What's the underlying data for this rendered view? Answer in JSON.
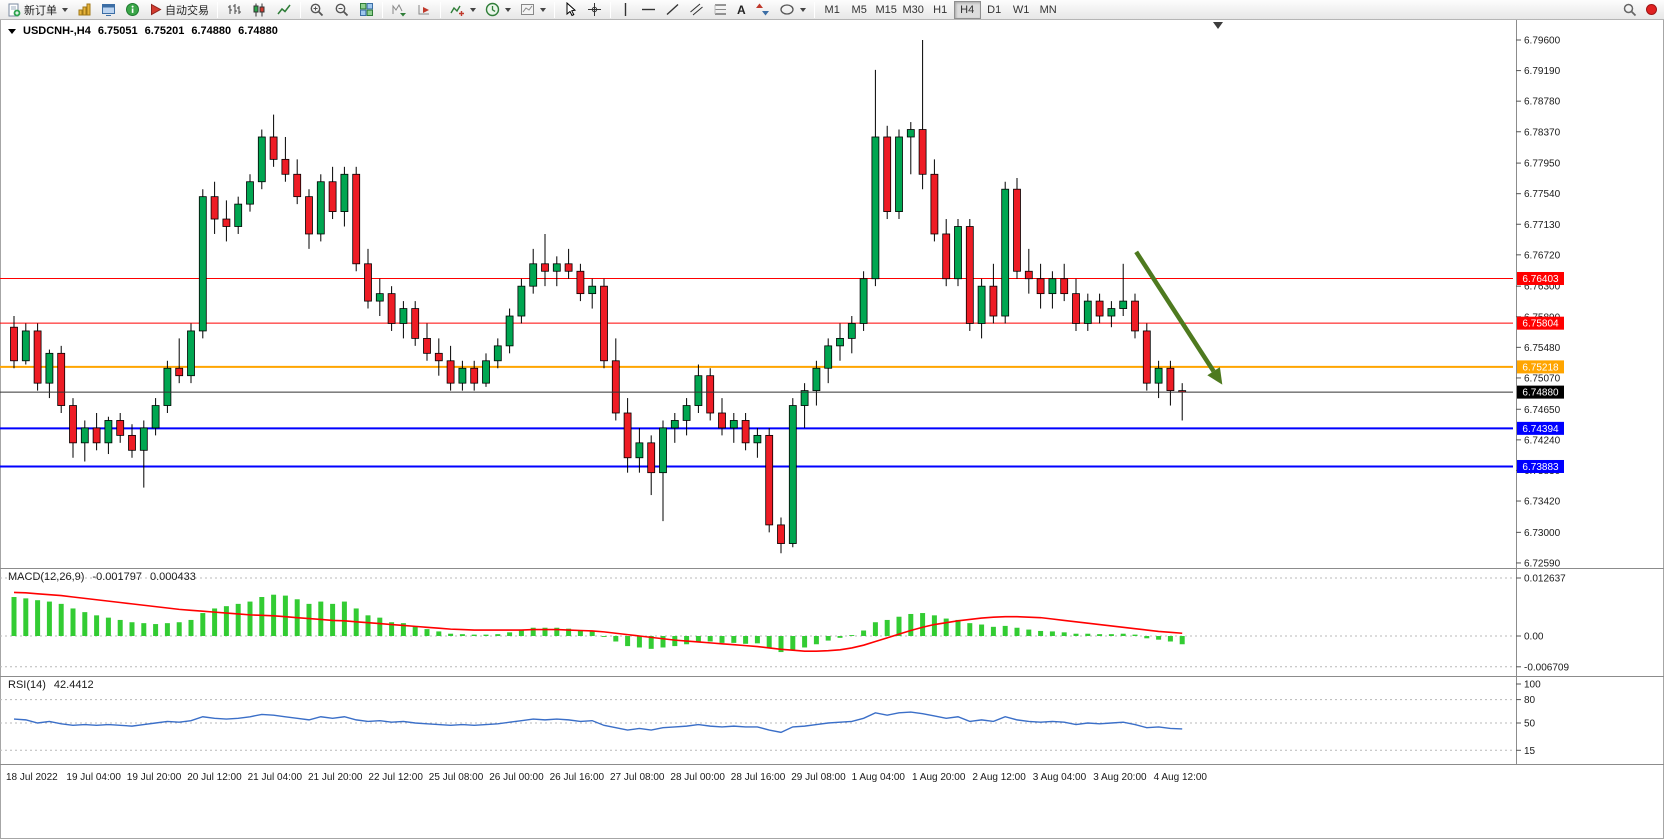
{
  "colors": {
    "bull": "#00a651",
    "bear": "#ee1c25",
    "wick": "#000000",
    "macd_histogram": "#33cc33",
    "macd_signal": "#ff0000",
    "rsi_line": "#3b6fc8"
  },
  "toolbar": {
    "new_order_label": "新订单",
    "auto_trading_label": "自动交易",
    "text_tool_label": "A",
    "timeframes": [
      "M1",
      "M5",
      "M15",
      "M30",
      "H1",
      "H4",
      "D1",
      "W1",
      "MN"
    ],
    "active_timeframe": "H4"
  },
  "chart": {
    "symbol_header": "USDCNH-,H4",
    "open": "6.75051",
    "high": "6.75201",
    "low": "6.74880",
    "close": "6.74880"
  },
  "chart_data": {
    "type": "candlestick",
    "symbol": "USDCNH-",
    "timeframe": "H4",
    "y_ticks": [
      "6.79600",
      "6.79190",
      "6.78780",
      "6.78370",
      "6.77950",
      "6.77540",
      "6.77130",
      "6.76720",
      "6.76300",
      "6.75890",
      "6.75480",
      "6.75070",
      "6.74650",
      "6.74240",
      "6.73830",
      "6.73420",
      "6.73000",
      "6.72590"
    ],
    "x_labels": [
      "18 Jul 2022",
      "19 Jul 04:00",
      "19 Jul 20:00",
      "20 Jul 12:00",
      "21 Jul 04:00",
      "21 Jul 20:00",
      "22 Jul 12:00",
      "25 Jul 08:00",
      "26 Jul 00:00",
      "26 Jul 16:00",
      "27 Jul 08:00",
      "28 Jul 00:00",
      "28 Jul 16:00",
      "29 Jul 08:00",
      "1 Aug 04:00",
      "1 Aug 20:00",
      "2 Aug 12:00",
      "3 Aug 04:00",
      "3 Aug 20:00",
      "4 Aug 12:00"
    ],
    "levels": [
      {
        "price": 6.76403,
        "label": "6.76403",
        "color": "#ff0000",
        "line_width": 1
      },
      {
        "price": 6.75804,
        "label": "6.75804",
        "color": "#ff0000",
        "line_width": 1
      },
      {
        "price": 6.75218,
        "label": "6.75218",
        "color": "#ffa500",
        "line_width": 2
      },
      {
        "price": 6.74394,
        "label": "6.74394",
        "color": "#0000ff",
        "line_width": 2
      },
      {
        "price": 6.73883,
        "label": "6.73883",
        "color": "#0000ff",
        "line_width": 2
      }
    ],
    "current_price": {
      "price": 6.7488,
      "label": "6.74880",
      "line_color": "#333333",
      "label_bg": "#000000"
    },
    "arrow": {
      "from_index": 95.1,
      "from_price": 6.7676,
      "to_index": 102.4,
      "to_price": 6.7498,
      "color": "#4e7a1f"
    },
    "candles": [
      [
        6.7575,
        6.759,
        6.752,
        6.753
      ],
      [
        6.753,
        6.758,
        6.7525,
        6.757
      ],
      [
        6.757,
        6.758,
        6.749,
        6.75
      ],
      [
        6.75,
        6.7545,
        6.748,
        6.754
      ],
      [
        6.754,
        6.755,
        6.746,
        6.747
      ],
      [
        6.747,
        6.748,
        6.74,
        6.742
      ],
      [
        6.742,
        6.745,
        6.7395,
        6.744
      ],
      [
        6.744,
        6.746,
        6.741,
        6.742
      ],
      [
        6.742,
        6.7455,
        6.7405,
        6.745
      ],
      [
        6.745,
        6.746,
        6.742,
        6.743
      ],
      [
        6.743,
        6.7445,
        6.74,
        6.741
      ],
      [
        6.741,
        6.745,
        6.736,
        6.744
      ],
      [
        6.744,
        6.748,
        6.743,
        6.747
      ],
      [
        6.747,
        6.753,
        6.746,
        6.752
      ],
      [
        6.752,
        6.756,
        6.75,
        6.751
      ],
      [
        6.751,
        6.758,
        6.75,
        6.757
      ],
      [
        6.757,
        6.776,
        6.756,
        6.775
      ],
      [
        6.775,
        6.777,
        6.77,
        6.772
      ],
      [
        6.772,
        6.7745,
        6.769,
        6.771
      ],
      [
        6.771,
        6.775,
        6.77,
        6.774
      ],
      [
        6.774,
        6.778,
        6.773,
        6.777
      ],
      [
        6.777,
        6.784,
        6.776,
        6.783
      ],
      [
        6.783,
        6.786,
        6.779,
        6.78
      ],
      [
        6.78,
        6.783,
        6.777,
        6.778
      ],
      [
        6.778,
        6.78,
        6.774,
        6.775
      ],
      [
        6.775,
        6.776,
        6.768,
        6.77
      ],
      [
        6.77,
        6.778,
        6.769,
        6.777
      ],
      [
        6.777,
        6.779,
        6.772,
        6.773
      ],
      [
        6.773,
        6.779,
        6.771,
        6.778
      ],
      [
        6.778,
        6.779,
        6.765,
        6.766
      ],
      [
        6.766,
        6.768,
        6.76,
        6.761
      ],
      [
        6.761,
        6.764,
        6.759,
        6.762
      ],
      [
        6.762,
        6.763,
        6.757,
        6.758
      ],
      [
        6.758,
        6.761,
        6.756,
        6.76
      ],
      [
        6.76,
        6.761,
        6.755,
        6.756
      ],
      [
        6.756,
        6.758,
        6.753,
        6.754
      ],
      [
        6.754,
        6.756,
        6.751,
        6.753
      ],
      [
        6.753,
        6.755,
        6.749,
        6.75
      ],
      [
        6.75,
        6.753,
        6.749,
        6.752
      ],
      [
        6.752,
        6.753,
        6.749,
        6.75
      ],
      [
        6.75,
        6.754,
        6.7495,
        6.753
      ],
      [
        6.753,
        6.756,
        6.752,
        6.755
      ],
      [
        6.755,
        6.76,
        6.754,
        6.759
      ],
      [
        6.759,
        6.764,
        6.758,
        6.763
      ],
      [
        6.763,
        6.768,
        6.762,
        6.766
      ],
      [
        6.766,
        6.77,
        6.763,
        6.765
      ],
      [
        6.765,
        6.767,
        6.763,
        6.766
      ],
      [
        6.766,
        6.768,
        6.764,
        6.765
      ],
      [
        6.765,
        6.766,
        6.761,
        6.762
      ],
      [
        6.762,
        6.764,
        6.76,
        6.763
      ],
      [
        6.763,
        6.764,
        6.752,
        6.753
      ],
      [
        6.753,
        6.756,
        6.745,
        6.746
      ],
      [
        6.746,
        6.748,
        6.738,
        6.74
      ],
      [
        6.74,
        6.744,
        6.738,
        6.742
      ],
      [
        6.742,
        6.743,
        6.735,
        6.738
      ],
      [
        6.738,
        6.745,
        6.7315,
        6.744
      ],
      [
        6.744,
        6.746,
        6.742,
        6.745
      ],
      [
        6.745,
        6.748,
        6.743,
        6.747
      ],
      [
        6.747,
        6.7525,
        6.746,
        6.751
      ],
      [
        6.751,
        6.752,
        6.745,
        6.746
      ],
      [
        6.746,
        6.748,
        6.743,
        6.744
      ],
      [
        6.744,
        6.746,
        6.742,
        6.745
      ],
      [
        6.745,
        6.746,
        6.741,
        6.742
      ],
      [
        6.742,
        6.744,
        6.74,
        6.743
      ],
      [
        6.743,
        6.744,
        6.73,
        6.731
      ],
      [
        6.731,
        6.732,
        6.7272,
        6.7285
      ],
      [
        6.7285,
        6.748,
        6.728,
        6.747
      ],
      [
        6.747,
        6.75,
        6.744,
        6.749
      ],
      [
        6.749,
        6.753,
        6.747,
        6.752
      ],
      [
        6.752,
        6.756,
        6.75,
        6.755
      ],
      [
        6.755,
        6.758,
        6.753,
        6.756
      ],
      [
        6.756,
        6.759,
        6.754,
        6.758
      ],
      [
        6.758,
        6.765,
        6.757,
        6.764
      ],
      [
        6.764,
        6.792,
        6.763,
        6.783
      ],
      [
        6.783,
        6.7845,
        6.772,
        6.773
      ],
      [
        6.773,
        6.784,
        6.772,
        6.783
      ],
      [
        6.783,
        6.785,
        6.778,
        6.784
      ],
      [
        6.784,
        6.796,
        6.776,
        6.778
      ],
      [
        6.778,
        6.78,
        6.769,
        6.77
      ],
      [
        6.77,
        6.772,
        6.763,
        6.764
      ],
      [
        6.764,
        6.772,
        6.763,
        6.771
      ],
      [
        6.771,
        6.772,
        6.757,
        6.758
      ],
      [
        6.758,
        6.764,
        6.756,
        6.763
      ],
      [
        6.763,
        6.766,
        6.758,
        6.759
      ],
      [
        6.759,
        6.777,
        6.758,
        6.776
      ],
      [
        6.776,
        6.7775,
        6.764,
        6.765
      ],
      [
        6.765,
        6.768,
        6.762,
        6.764
      ],
      [
        6.764,
        6.766,
        6.76,
        6.762
      ],
      [
        6.762,
        6.765,
        6.76,
        6.764
      ],
      [
        6.764,
        6.766,
        6.761,
        6.762
      ],
      [
        6.762,
        6.764,
        6.757,
        6.758
      ],
      [
        6.758,
        6.762,
        6.757,
        6.761
      ],
      [
        6.761,
        6.762,
        6.758,
        6.759
      ],
      [
        6.759,
        6.761,
        6.7575,
        6.76
      ],
      [
        6.76,
        6.766,
        6.759,
        6.761
      ],
      [
        6.761,
        6.762,
        6.756,
        6.757
      ],
      [
        6.757,
        6.758,
        6.749,
        6.75
      ],
      [
        6.75,
        6.753,
        6.748,
        6.752
      ],
      [
        6.752,
        6.753,
        6.747,
        6.749
      ],
      [
        6.749,
        6.75,
        6.745,
        6.7488
      ]
    ],
    "macd": {
      "type": "bar+line",
      "label": "MACD(12,26,9)",
      "value_main": "-0.001797",
      "value_signal": "0.000433",
      "scale": [
        "0.012637",
        "0.00",
        "-0.006709"
      ],
      "histogram": [
        0.0085,
        0.0082,
        0.0078,
        0.0075,
        0.007,
        0.006,
        0.0052,
        0.0045,
        0.004,
        0.0035,
        0.003,
        0.0028,
        0.0026,
        0.0028,
        0.003,
        0.0035,
        0.005,
        0.006,
        0.0065,
        0.007,
        0.0075,
        0.0085,
        0.009,
        0.0088,
        0.008,
        0.007,
        0.0075,
        0.007,
        0.0075,
        0.006,
        0.0045,
        0.004,
        0.003,
        0.0028,
        0.002,
        0.0015,
        0.001,
        0.0005,
        0.0004,
        0.0003,
        0.0003,
        0.0004,
        0.0008,
        0.0012,
        0.0018,
        0.0018,
        0.0018,
        0.0016,
        0.0012,
        0.001,
        -0.0002,
        -0.0012,
        -0.0022,
        -0.0025,
        -0.0028,
        -0.0025,
        -0.0022,
        -0.0018,
        -0.0012,
        -0.0012,
        -0.0015,
        -0.0015,
        -0.0017,
        -0.0016,
        -0.0025,
        -0.0035,
        -0.003,
        -0.0025,
        -0.0018,
        -0.001,
        -0.0004,
        0.0002,
        0.0012,
        0.003,
        0.0035,
        0.0042,
        0.0048,
        0.005,
        0.0045,
        0.0038,
        0.0035,
        0.0028,
        0.0025,
        0.002,
        0.0022,
        0.0018,
        0.0014,
        0.0011,
        0.001,
        0.0008,
        0.0005,
        0.0005,
        0.0004,
        0.0004,
        0.0005,
        0.0003,
        -0.0005,
        -0.0008,
        -0.0012,
        -0.0018
      ],
      "signal": [
        0.0095,
        0.0094,
        0.0092,
        0.009,
        0.0088,
        0.0085,
        0.0082,
        0.0079,
        0.0076,
        0.0073,
        0.007,
        0.0067,
        0.0064,
        0.0061,
        0.0058,
        0.0056,
        0.0054,
        0.0052,
        0.005,
        0.0048,
        0.0046,
        0.0045,
        0.0044,
        0.0042,
        0.004,
        0.0038,
        0.0036,
        0.0034,
        0.0033,
        0.0031,
        0.0029,
        0.0027,
        0.0025,
        0.0023,
        0.0021,
        0.0019,
        0.0017,
        0.0015,
        0.0014,
        0.0013,
        0.0013,
        0.0013,
        0.0013,
        0.0013,
        0.0014,
        0.0014,
        0.0014,
        0.0013,
        0.0012,
        0.0011,
        0.0009,
        0.0006,
        0.0003,
        0.0,
        -0.0003,
        -0.0006,
        -0.0009,
        -0.0011,
        -0.0013,
        -0.0015,
        -0.0017,
        -0.0019,
        -0.0021,
        -0.0023,
        -0.0026,
        -0.0029,
        -0.0031,
        -0.0033,
        -0.0033,
        -0.0032,
        -0.003,
        -0.0026,
        -0.002,
        -0.0012,
        -0.0004,
        0.0004,
        0.0012,
        0.0019,
        0.0025,
        0.0029,
        0.0033,
        0.0036,
        0.0039,
        0.0041,
        0.0042,
        0.0042,
        0.0041,
        0.004,
        0.0037,
        0.0034,
        0.0031,
        0.0028,
        0.0025,
        0.0022,
        0.0019,
        0.0016,
        0.0013,
        0.001,
        0.0008,
        0.0006
      ]
    },
    "rsi": {
      "type": "line",
      "label": "RSI(14)",
      "value": "42.4412",
      "levels": [
        "100",
        "80",
        "50",
        "15"
      ],
      "line": [
        55,
        54,
        50,
        52,
        49,
        47,
        48,
        47,
        48,
        47,
        46,
        48,
        50,
        52,
        51,
        53,
        58,
        56,
        55,
        56,
        58,
        61,
        60,
        58,
        56,
        54,
        58,
        56,
        58,
        54,
        52,
        53,
        51,
        52,
        50,
        49,
        48,
        47,
        48,
        47,
        48,
        49,
        51,
        53,
        55,
        54,
        55,
        54,
        52,
        53,
        47,
        44,
        41,
        43,
        41,
        44,
        45,
        46,
        48,
        46,
        45,
        46,
        45,
        45,
        41,
        38,
        45,
        46,
        48,
        50,
        51,
        52,
        56,
        63,
        60,
        63,
        64,
        62,
        59,
        56,
        58,
        52,
        54,
        52,
        58,
        54,
        52,
        51,
        52,
        51,
        48,
        50,
        49,
        50,
        51,
        48,
        44,
        45,
        43,
        42.4
      ]
    }
  }
}
